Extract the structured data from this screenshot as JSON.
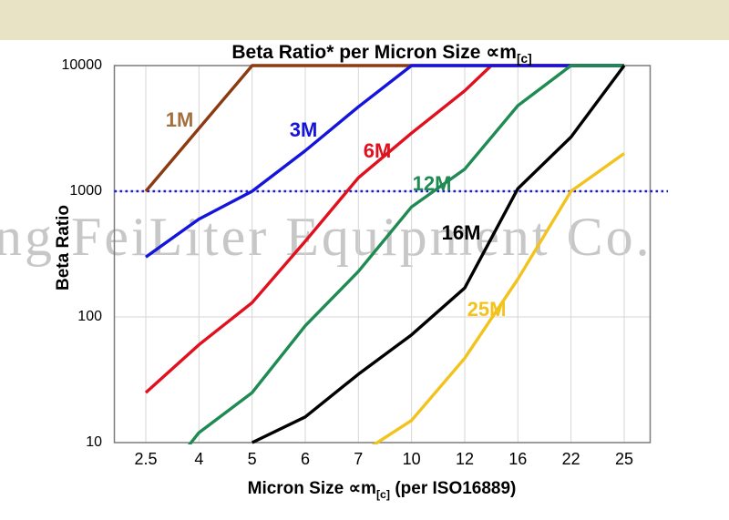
{
  "page": {
    "top_band_color": "#E7E3C4",
    "background": "#FFFFFF"
  },
  "watermark": {
    "text": "ng FeiLiter Equipment Co.",
    "color": "#C7C7C7"
  },
  "chart_data": {
    "type": "line",
    "title": "Beta Ratio* per Micron Size ∝m[c]",
    "title_parts": {
      "pre": "Beta Ratio* per Micron Size ∝m",
      "sub": "[c]"
    },
    "xlabel": "Micron Size ∝m[c] (per ISO16889)",
    "xlabel_parts": {
      "pre": "Micron Size ∝m",
      "sub": "[c]",
      "post": " (per ISO16889)"
    },
    "ylabel": "Beta Ratio",
    "x_categories": [
      "2.5",
      "4",
      "5",
      "6",
      "7",
      "10",
      "12",
      "16",
      "22",
      "25"
    ],
    "y_scale": "log",
    "ylim": [
      10,
      10000
    ],
    "y_ticks": [
      "10",
      "100",
      "1000",
      "10000"
    ],
    "y_gridlines": [
      100,
      1000
    ],
    "grid": true,
    "grid_color": "#D6D6D6",
    "border_color": "#7C7C7C",
    "legend_position": "inline-labels",
    "reference_line": {
      "value": 1000,
      "style": "dotted",
      "color": "#1A1ACD"
    },
    "series": [
      {
        "name": "1M",
        "color": "#8C3A12",
        "label_color": "#A2703E",
        "points": [
          [
            0,
            1000
          ],
          [
            2,
            10000
          ],
          [
            9,
            10000
          ]
        ],
        "label_at": [
          197,
          132
        ]
      },
      {
        "name": "6M",
        "color": "#E1101E",
        "label_color": "#E1101E",
        "points": [
          [
            0,
            25
          ],
          [
            1,
            60
          ],
          [
            2,
            130
          ],
          [
            3,
            400
          ],
          [
            4,
            1280
          ],
          [
            5,
            2900
          ],
          [
            6,
            6300
          ],
          [
            6.5,
            10000
          ],
          [
            9,
            10000
          ]
        ],
        "label_at": [
          414,
          166
        ]
      },
      {
        "name": "3M",
        "color": "#1414DC",
        "label_color": "#1414DC",
        "points": [
          [
            0,
            300
          ],
          [
            1,
            600
          ],
          [
            2,
            1000
          ],
          [
            3,
            2100
          ],
          [
            4,
            4700
          ],
          [
            5,
            10000
          ],
          [
            9,
            10000
          ]
        ],
        "label_at": [
          333,
          143
        ]
      },
      {
        "name": "12M",
        "color": "#1F8B53",
        "label_color": "#1F8B53",
        "points": [
          [
            0,
            3.5
          ],
          [
            1,
            12
          ],
          [
            2,
            25
          ],
          [
            3,
            85
          ],
          [
            4,
            230
          ],
          [
            5,
            750
          ],
          [
            6,
            1500
          ],
          [
            7,
            4800
          ],
          [
            8,
            10000
          ],
          [
            9,
            10000
          ]
        ],
        "label_at": [
          474,
          202
        ]
      },
      {
        "name": "16M",
        "color": "#000000",
        "label_color": "#000000",
        "points": [
          [
            2,
            10
          ],
          [
            3,
            16
          ],
          [
            4,
            35
          ],
          [
            5,
            72
          ],
          [
            6,
            170
          ],
          [
            7,
            1050
          ],
          [
            8,
            2700
          ],
          [
            9,
            10000
          ]
        ],
        "label_at": [
          506,
          256
        ]
      },
      {
        "name": "25M",
        "color": "#F3C31D",
        "label_color": "#F3C31D",
        "points": [
          [
            4,
            8
          ],
          [
            5,
            15
          ],
          [
            6,
            47
          ],
          [
            7,
            200
          ],
          [
            8,
            1000
          ],
          [
            9,
            2000
          ]
        ],
        "label_at": [
          534,
          340
        ]
      }
    ]
  }
}
